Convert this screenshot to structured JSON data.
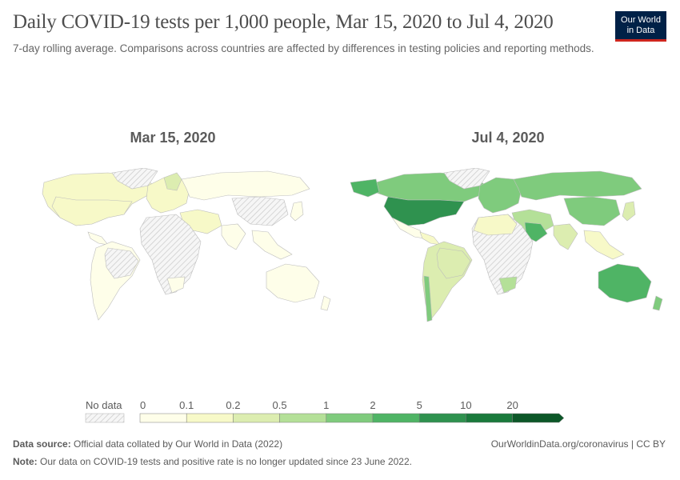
{
  "header": {
    "title": "Daily COVID-19 tests per 1,000 people, Mar 15, 2020 to Jul 4, 2020",
    "subtitle": "7-day rolling average. Comparisons across countries are affected by differences in testing policies and reporting methods.",
    "logo_line1": "Our World",
    "logo_line2": "in Data"
  },
  "chart_data": {
    "type": "choropleth",
    "metric": "Daily COVID-19 tests per 1,000 people",
    "maps": [
      {
        "label": "Mar 15, 2020",
        "regions": [
          {
            "name": "North America",
            "bin": 1
          },
          {
            "name": "USA",
            "bin": 1
          },
          {
            "name": "Greenland",
            "bin": -1
          },
          {
            "name": "Central America",
            "bin": 0
          },
          {
            "name": "South America",
            "bin": 0
          },
          {
            "name": "Brazil",
            "bin": -1
          },
          {
            "name": "Europe",
            "bin": 1
          },
          {
            "name": "Scandinavia",
            "bin": 2
          },
          {
            "name": "Russia",
            "bin": 0
          },
          {
            "name": "Middle East",
            "bin": 1
          },
          {
            "name": "Africa",
            "bin": -1
          },
          {
            "name": "South Africa",
            "bin": 0
          },
          {
            "name": "India",
            "bin": 0
          },
          {
            "name": "China",
            "bin": -1
          },
          {
            "name": "Southeast Asia",
            "bin": 0
          },
          {
            "name": "Japan",
            "bin": 0
          },
          {
            "name": "Australia",
            "bin": 0
          },
          {
            "name": "New Zealand",
            "bin": 0
          }
        ]
      },
      {
        "label": "Jul 4, 2020",
        "regions": [
          {
            "name": "Canada",
            "bin": 4
          },
          {
            "name": "Alaska",
            "bin": 5
          },
          {
            "name": "USA",
            "bin": 6
          },
          {
            "name": "Greenland",
            "bin": -1
          },
          {
            "name": "Mexico",
            "bin": 0
          },
          {
            "name": "Central America",
            "bin": 1
          },
          {
            "name": "South America",
            "bin": 2
          },
          {
            "name": "Chile",
            "bin": 4
          },
          {
            "name": "Brazil",
            "bin": 2
          },
          {
            "name": "Europe",
            "bin": 4
          },
          {
            "name": "Russia",
            "bin": 4
          },
          {
            "name": "China",
            "bin": 4
          },
          {
            "name": "Middle East",
            "bin": 3
          },
          {
            "name": "Saudi Arabia",
            "bin": 5
          },
          {
            "name": "Africa",
            "bin": -1
          },
          {
            "name": "North Africa",
            "bin": 1
          },
          {
            "name": "South Africa",
            "bin": 3
          },
          {
            "name": "India",
            "bin": 2
          },
          {
            "name": "Southeast Asia",
            "bin": 1
          },
          {
            "name": "Japan",
            "bin": 2
          },
          {
            "name": "Australia",
            "bin": 5
          },
          {
            "name": "New Zealand",
            "bin": 4
          }
        ]
      }
    ],
    "legend": {
      "no_data_label": "No data",
      "ticks": [
        "0",
        "0.1",
        "0.2",
        "0.5",
        "1",
        "2",
        "5",
        "10",
        "20"
      ],
      "colors": [
        "#fefee9",
        "#f7f9c8",
        "#dcedb0",
        "#b4e098",
        "#7fcb7d",
        "#4fb465",
        "#2f924f",
        "#1a7a3c",
        "#0c5728"
      ]
    },
    "no_data_color": "#f0f0f0"
  },
  "footer": {
    "source_label": "Data source:",
    "source_text": "Official data collated by Our World in Data (2022)",
    "url": "OurWorldinData.org/coronavirus | CC BY",
    "note_label": "Note:",
    "note_text": "Our data on COVID-19 tests and positive rate is no longer updated since 23 June 2022."
  }
}
